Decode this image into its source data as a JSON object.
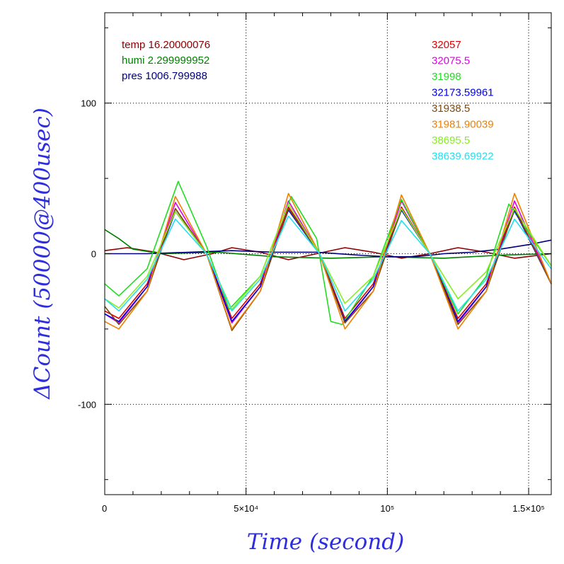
{
  "chart_data": {
    "type": "line",
    "xlabel": "Time (second)",
    "ylabel": "ΔCount (50000@400usec)",
    "xlim": [
      0,
      158000
    ],
    "ylim": [
      -160,
      160
    ],
    "x_ticks": [
      {
        "value": 0,
        "label": "0"
      },
      {
        "value": 50000,
        "label": "5×10⁴"
      },
      {
        "value": 100000,
        "label": "10⁵"
      },
      {
        "value": 150000,
        "label": "1.5×10⁵"
      }
    ],
    "y_ticks": [
      {
        "value": 100,
        "label": "100"
      },
      {
        "value": 0,
        "label": "0"
      },
      {
        "value": -100,
        "label": "-100"
      }
    ],
    "grid": true,
    "legend_left": [
      {
        "name": "temp 16.20000076",
        "color": "#8b0000"
      },
      {
        "name": "humi 2.299999952",
        "color": "#008000"
      },
      {
        "name": "pres 1006.799988",
        "color": "#00007f"
      }
    ],
    "legend_right": [
      {
        "name": "32057",
        "color": "#e00000"
      },
      {
        "name": "32075.5",
        "color": "#e000e0"
      },
      {
        "name": "31998",
        "color": "#22dd22"
      },
      {
        "name": "32173.59961",
        "color": "#0000e0"
      },
      {
        "name": "31938.5",
        "color": "#7a4a10"
      },
      {
        "name": "31981.90039",
        "color": "#f08000"
      },
      {
        "name": "38695.5",
        "color": "#88ee22"
      },
      {
        "name": "38639.69922",
        "color": "#22e0f0"
      }
    ],
    "series": [
      {
        "name": "temp 16.20000076",
        "color": "#8b0000",
        "x": [
          0,
          8000,
          18000,
          28000,
          38000,
          45000,
          55000,
          65000,
          75000,
          85000,
          95000,
          105000,
          115000,
          125000,
          135000,
          145000,
          158000
        ],
        "y": [
          2,
          4,
          1,
          -4,
          0,
          4,
          1,
          -4,
          0,
          4,
          1,
          -3,
          0,
          4,
          1,
          -3,
          0
        ]
      },
      {
        "name": "humi 2.299999952",
        "color": "#008000",
        "x": [
          0,
          5000,
          10000,
          20000,
          40000,
          60000,
          80000,
          100000,
          120000,
          140000,
          158000
        ],
        "y": [
          16,
          10,
          3,
          0,
          1,
          -2,
          -3,
          -2,
          -3,
          -1,
          0
        ]
      },
      {
        "name": "pres 1006.799988",
        "color": "#00007f",
        "x": [
          0,
          15000,
          30000,
          45000,
          60000,
          75000,
          90000,
          100000,
          110000,
          120000,
          130000,
          140000,
          150000,
          158000
        ],
        "y": [
          0,
          0,
          1,
          2,
          1,
          1,
          -1,
          -2,
          -2,
          0,
          1,
          3,
          6,
          9
        ]
      },
      {
        "name": "32057",
        "color": "#e00000",
        "x": [
          0,
          5000,
          15000,
          25000,
          36000,
          45000,
          55000,
          65000,
          76000,
          85000,
          95000,
          105000,
          115000,
          125000,
          135000,
          145000,
          158000
        ],
        "y": [
          -38,
          -43,
          -20,
          30,
          0,
          -43,
          -20,
          31,
          0,
          -43,
          -20,
          31,
          0,
          -43,
          -20,
          31,
          -20
        ]
      },
      {
        "name": "32075.5",
        "color": "#e000e0",
        "x": [
          0,
          5000,
          15000,
          25000,
          36000,
          45000,
          55000,
          65000,
          76000,
          85000,
          95000,
          105000,
          115000,
          125000,
          135000,
          145000,
          158000
        ],
        "y": [
          -40,
          -46,
          -22,
          34,
          0,
          -46,
          -22,
          35,
          0,
          -46,
          -22,
          35,
          0,
          -46,
          -22,
          35,
          -20
        ]
      },
      {
        "name": "31998",
        "color": "#22dd22",
        "x": [
          0,
          5000,
          15000,
          26000,
          36000,
          44000,
          55000,
          66000,
          75000,
          80000,
          84000,
          95000,
          105000,
          115000,
          125000,
          135000,
          143000,
          158000
        ],
        "y": [
          -20,
          -28,
          -10,
          48,
          5,
          -37,
          -15,
          38,
          10,
          -45,
          -47,
          -15,
          36,
          0,
          -40,
          -15,
          33,
          -8
        ]
      },
      {
        "name": "32173.59961",
        "color": "#0000e0",
        "x": [
          0,
          5000,
          15000,
          25000,
          36000,
          45000,
          55000,
          65000,
          76000,
          85000,
          95000,
          105000,
          115000,
          125000,
          135000,
          145000,
          158000
        ],
        "y": [
          -40,
          -45,
          -22,
          28,
          0,
          -45,
          -22,
          29,
          0,
          -45,
          -22,
          29,
          0,
          -45,
          -22,
          29,
          -20
        ]
      },
      {
        "name": "31938.5",
        "color": "#7a4a10",
        "x": [
          0,
          5000,
          15000,
          25000,
          36000,
          45000,
          55000,
          65000,
          76000,
          85000,
          95000,
          105000,
          115000,
          125000,
          135000,
          145000,
          158000
        ],
        "y": [
          -35,
          -47,
          -25,
          30,
          0,
          -51,
          -25,
          30,
          0,
          -46,
          -25,
          30,
          0,
          -47,
          -25,
          30,
          -20
        ]
      },
      {
        "name": "31981.90039",
        "color": "#f08000",
        "x": [
          0,
          5000,
          15000,
          25000,
          36000,
          45000,
          55000,
          65000,
          76000,
          85000,
          95000,
          105000,
          115000,
          125000,
          135000,
          145000,
          158000
        ],
        "y": [
          -45,
          -50,
          -25,
          38,
          0,
          -50,
          -25,
          40,
          0,
          -50,
          -25,
          39,
          0,
          -50,
          -25,
          40,
          -20
        ]
      },
      {
        "name": "38695.5",
        "color": "#88ee22",
        "x": [
          0,
          5000,
          15000,
          25000,
          36000,
          45000,
          55000,
          65000,
          76000,
          85000,
          95000,
          105000,
          115000,
          125000,
          135000,
          145000,
          158000
        ],
        "y": [
          -30,
          -36,
          -15,
          28,
          0,
          -37,
          -15,
          33,
          0,
          -33,
          -15,
          30,
          0,
          -30,
          -12,
          30,
          -8
        ]
      },
      {
        "name": "38639.69922",
        "color": "#22e0f0",
        "x": [
          0,
          5000,
          15000,
          25000,
          36000,
          45000,
          55000,
          65000,
          76000,
          85000,
          95000,
          105000,
          115000,
          125000,
          135000,
          145000,
          158000
        ],
        "y": [
          -30,
          -38,
          -17,
          23,
          0,
          -38,
          -17,
          25,
          0,
          -38,
          -17,
          22,
          0,
          -38,
          -17,
          23,
          -10
        ]
      }
    ]
  }
}
